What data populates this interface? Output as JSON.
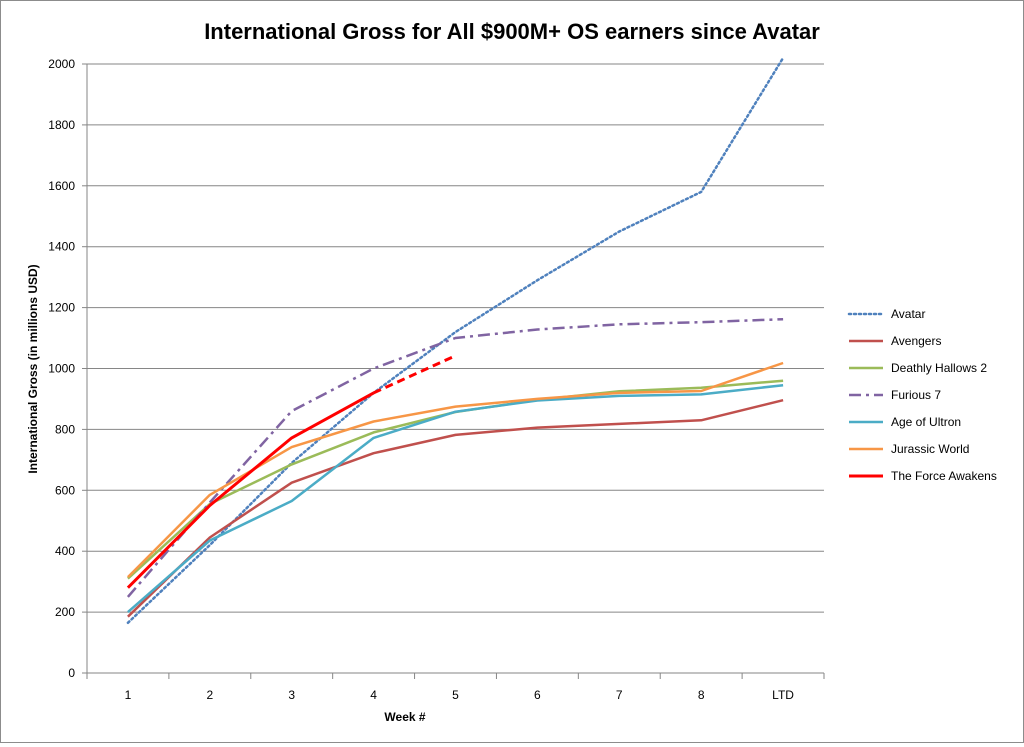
{
  "chart_data": {
    "type": "line",
    "title": "International Gross  for All $900M+ OS earners since Avatar",
    "xlabel": "Week #",
    "ylabel": "International Gross (in millions USD)",
    "categories": [
      "1",
      "2",
      "3",
      "4",
      "5",
      "6",
      "7",
      "8",
      "LTD"
    ],
    "ylim": [
      0,
      2000
    ],
    "yticks": [
      0,
      200,
      400,
      600,
      800,
      1000,
      1200,
      1400,
      1600,
      1800,
      2000
    ],
    "grid": "horizontal",
    "legend_position": "right",
    "series": [
      {
        "name": "Avatar",
        "color": "#4f81bd",
        "dash": "dotted",
        "values": [
          165,
          420,
          690,
          920,
          1120,
          1290,
          1450,
          1580,
          2020
        ]
      },
      {
        "name": "Avengers",
        "color": "#c0504d",
        "dash": "solid",
        "values": [
          185,
          445,
          625,
          722,
          782,
          806,
          818,
          830,
          896
        ]
      },
      {
        "name": "Deathly Hallows 2",
        "color": "#9bbb59",
        "dash": "solid",
        "values": [
          310,
          555,
          685,
          790,
          857,
          897,
          925,
          937,
          960
        ]
      },
      {
        "name": "Furious 7",
        "color": "#8064a2",
        "dash": "dashdot",
        "values": [
          250,
          560,
          860,
          1000,
          1100,
          1128,
          1145,
          1152,
          1162
        ]
      },
      {
        "name": "Age of Ultron",
        "color": "#4bacc6",
        "dash": "solid",
        "values": [
          200,
          435,
          565,
          772,
          858,
          895,
          910,
          915,
          945
        ]
      },
      {
        "name": "Jurassic World",
        "color": "#f79646",
        "dash": "solid",
        "values": [
          315,
          585,
          742,
          826,
          875,
          900,
          920,
          926,
          1018
        ]
      },
      {
        "name": "The Force Awakens",
        "color": "#ff0000",
        "dash": "solid",
        "values": [
          280,
          550,
          772,
          920,
          null,
          null,
          null,
          null,
          null
        ]
      }
    ],
    "annotations": [
      {
        "series": "The Force Awakens",
        "type": "projection",
        "style": "dashed",
        "from_category": "4",
        "to_category": "5",
        "values": [
          920,
          1042
        ]
      }
    ]
  }
}
